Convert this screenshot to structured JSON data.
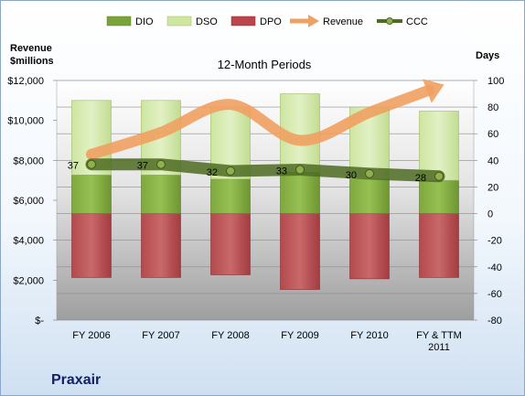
{
  "company": "Praxair",
  "left_axis": {
    "title_line1": "Revenue",
    "title_line2": "$millions",
    "ticks": [
      "$-",
      "$2,000",
      "$4,000",
      "$6,000",
      "$8,000",
      "$10,000",
      "$12,000"
    ]
  },
  "right_axis": {
    "title": "Days",
    "ticks": [
      "-80",
      "-60",
      "-40",
      "-20",
      "0",
      "20",
      "40",
      "60",
      "80",
      "100"
    ]
  },
  "legend": [
    {
      "name": "DIO",
      "color": "#7aa43a",
      "kind": "box"
    },
    {
      "name": "DSO",
      "color": "#cfe6a0",
      "kind": "box"
    },
    {
      "name": "DPO",
      "color": "#b8464a",
      "kind": "box"
    },
    {
      "name": "Revenue",
      "color": "#f0a060",
      "kind": "arrow"
    },
    {
      "name": "CCC",
      "color": "#5b7a2a",
      "kind": "line"
    }
  ],
  "chart_data": {
    "type": "bar",
    "title": "12-Month Periods",
    "categories": [
      [
        "FY 2006"
      ],
      [
        "FY 2007"
      ],
      [
        "FY 2008"
      ],
      [
        "FY 2009"
      ],
      [
        "FY 2010"
      ],
      [
        "FY & TTM",
        "2011"
      ]
    ],
    "right_ylim": [
      -80,
      100
    ],
    "left_ylim": [
      0,
      12000
    ],
    "grid": true,
    "legend_position": "top",
    "series": [
      {
        "name": "DPO",
        "axis": "right",
        "stacked": "negative",
        "values": [
          -48,
          -48,
          -46,
          -57,
          -49,
          -48
        ]
      },
      {
        "name": "DIO",
        "axis": "right",
        "stacked": "positive",
        "values": [
          29,
          29,
          26,
          31,
          26,
          25
        ]
      },
      {
        "name": "DSO",
        "axis": "right",
        "stacked": "positive",
        "values": [
          56,
          56,
          54,
          59,
          54,
          52
        ]
      },
      {
        "name": "CCC",
        "axis": "right",
        "type": "line",
        "values": [
          37,
          37,
          32,
          33,
          30,
          28
        ]
      },
      {
        "name": "Revenue",
        "axis": "left",
        "type": "line",
        "values": [
          8300,
          9400,
          10800,
          9000,
          10400,
          11700
        ]
      }
    ]
  }
}
